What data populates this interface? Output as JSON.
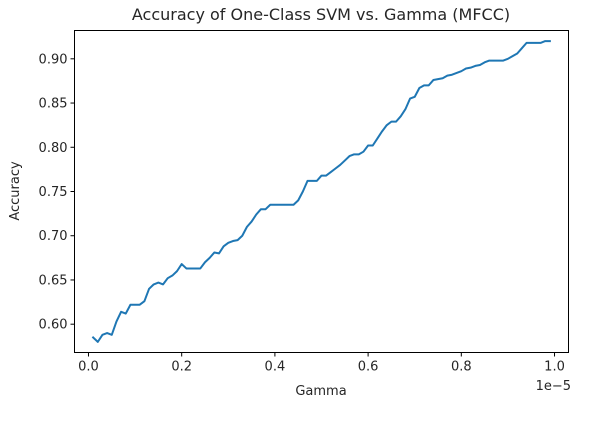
{
  "chart_data": {
    "type": "line",
    "title": "Accuracy of One-Class SVM vs. Gamma (MFCC)",
    "xlabel": "Gamma",
    "ylabel": "Accuracy",
    "x_offset_label": "1e−5",
    "xlim": [
      -0.03,
      1.03
    ],
    "ylim": [
      0.568,
      0.932
    ],
    "xticks": [
      0.0,
      0.2,
      0.4,
      0.6,
      0.8,
      1.0
    ],
    "xtick_labels": [
      "0.0",
      "0.2",
      "0.4",
      "0.6",
      "0.8",
      "1.0"
    ],
    "yticks": [
      0.6,
      0.65,
      0.7,
      0.75,
      0.8,
      0.85,
      0.9
    ],
    "ytick_labels": [
      "0.60",
      "0.65",
      "0.70",
      "0.75",
      "0.80",
      "0.85",
      "0.90"
    ],
    "grid": false,
    "legend": "none",
    "series": [
      {
        "color": "#1f77b4",
        "x": [
          0.01,
          0.02,
          0.03,
          0.04,
          0.05,
          0.06,
          0.07,
          0.08,
          0.09,
          0.1,
          0.11,
          0.12,
          0.13,
          0.14,
          0.15,
          0.16,
          0.17,
          0.18,
          0.19,
          0.2,
          0.21,
          0.22,
          0.23,
          0.24,
          0.25,
          0.26,
          0.27,
          0.28,
          0.29,
          0.3,
          0.31,
          0.32,
          0.33,
          0.34,
          0.35,
          0.36,
          0.37,
          0.38,
          0.39,
          0.4,
          0.41,
          0.42,
          0.43,
          0.44,
          0.45,
          0.46,
          0.47,
          0.48,
          0.49,
          0.5,
          0.51,
          0.52,
          0.53,
          0.54,
          0.55,
          0.56,
          0.57,
          0.58,
          0.59,
          0.6,
          0.61,
          0.62,
          0.63,
          0.64,
          0.65,
          0.66,
          0.67,
          0.68,
          0.69,
          0.7,
          0.71,
          0.72,
          0.73,
          0.74,
          0.75,
          0.76,
          0.77,
          0.78,
          0.79,
          0.8,
          0.81,
          0.82,
          0.83,
          0.84,
          0.85,
          0.86,
          0.87,
          0.88,
          0.89,
          0.9,
          0.91,
          0.92,
          0.93,
          0.94,
          0.95,
          0.96,
          0.97,
          0.98,
          0.99
        ],
        "y": [
          0.585,
          0.58,
          0.588,
          0.59,
          0.588,
          0.603,
          0.614,
          0.612,
          0.622,
          0.622,
          0.622,
          0.626,
          0.64,
          0.645,
          0.647,
          0.645,
          0.652,
          0.655,
          0.66,
          0.668,
          0.663,
          0.663,
          0.663,
          0.663,
          0.67,
          0.675,
          0.681,
          0.68,
          0.688,
          0.692,
          0.694,
          0.695,
          0.7,
          0.71,
          0.716,
          0.724,
          0.73,
          0.73,
          0.735,
          0.735,
          0.735,
          0.735,
          0.735,
          0.735,
          0.74,
          0.75,
          0.762,
          0.762,
          0.762,
          0.768,
          0.768,
          0.772,
          0.776,
          0.78,
          0.785,
          0.79,
          0.792,
          0.792,
          0.795,
          0.802,
          0.802,
          0.81,
          0.818,
          0.825,
          0.829,
          0.829,
          0.835,
          0.843,
          0.855,
          0.857,
          0.867,
          0.87,
          0.87,
          0.876,
          0.877,
          0.878,
          0.881,
          0.882,
          0.884,
          0.886,
          0.889,
          0.89,
          0.892,
          0.893,
          0.896,
          0.898,
          0.898,
          0.898,
          0.898,
          0.9,
          0.903,
          0.906,
          0.912,
          0.918,
          0.918,
          0.918,
          0.918,
          0.92,
          0.92
        ]
      }
    ]
  }
}
